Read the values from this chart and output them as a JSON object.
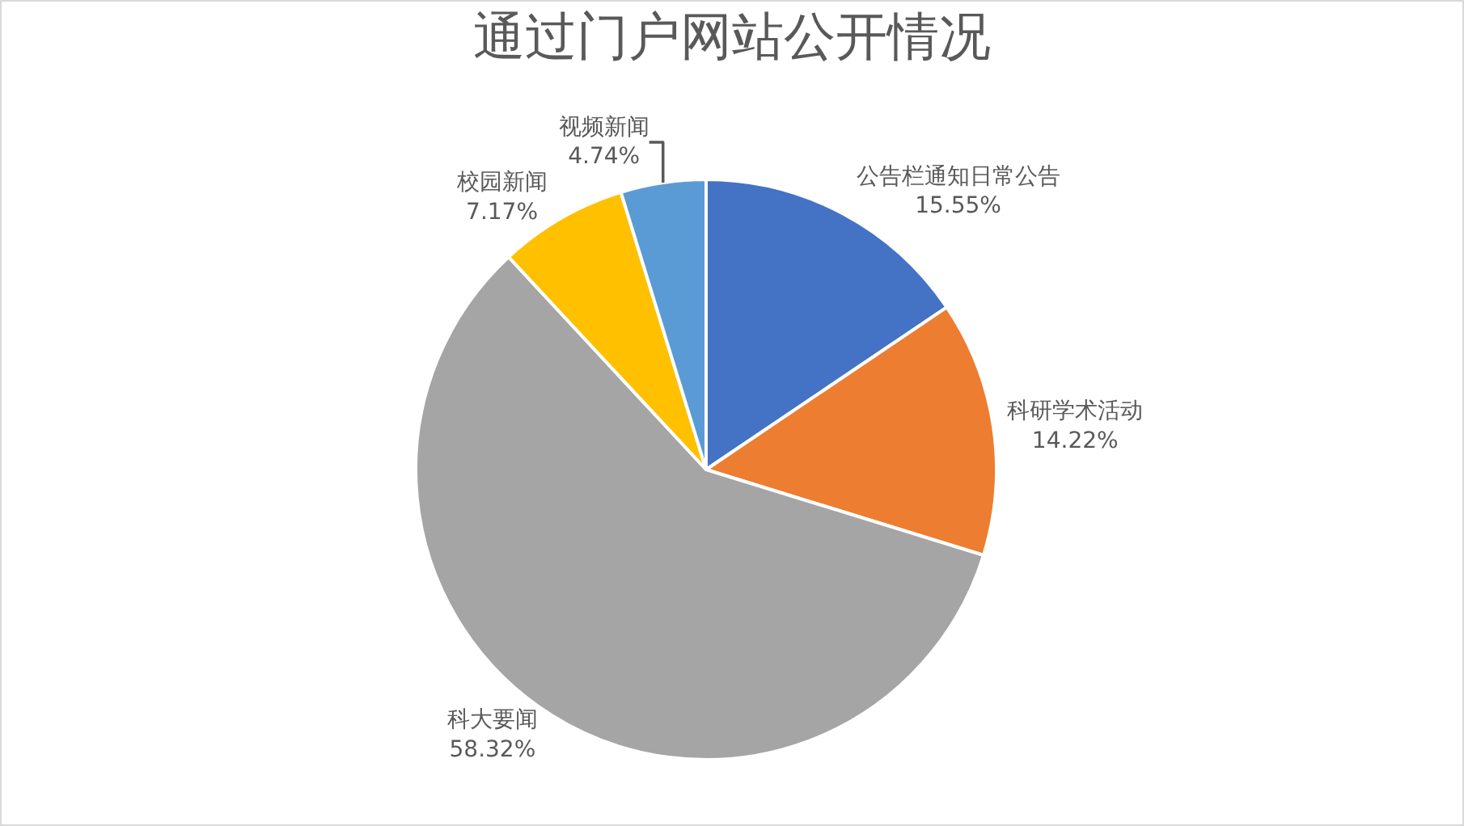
{
  "chart_data": {
    "type": "pie",
    "title": "通过门户网站公开情况",
    "categories": [
      "公告栏通知日常公告",
      "科研学术活动",
      "科大要闻",
      "校园新闻",
      "视频新闻"
    ],
    "values": [
      15.55,
      14.22,
      58.32,
      7.17,
      4.74
    ],
    "colors": [
      "#4472c4",
      "#ed7d31",
      "#a5a5a5",
      "#ffc000",
      "#5b9bd5"
    ],
    "value_labels": [
      "15.55%",
      "14.22%",
      "58.32%",
      "7.17%",
      "4.74%"
    ],
    "legend": false
  }
}
